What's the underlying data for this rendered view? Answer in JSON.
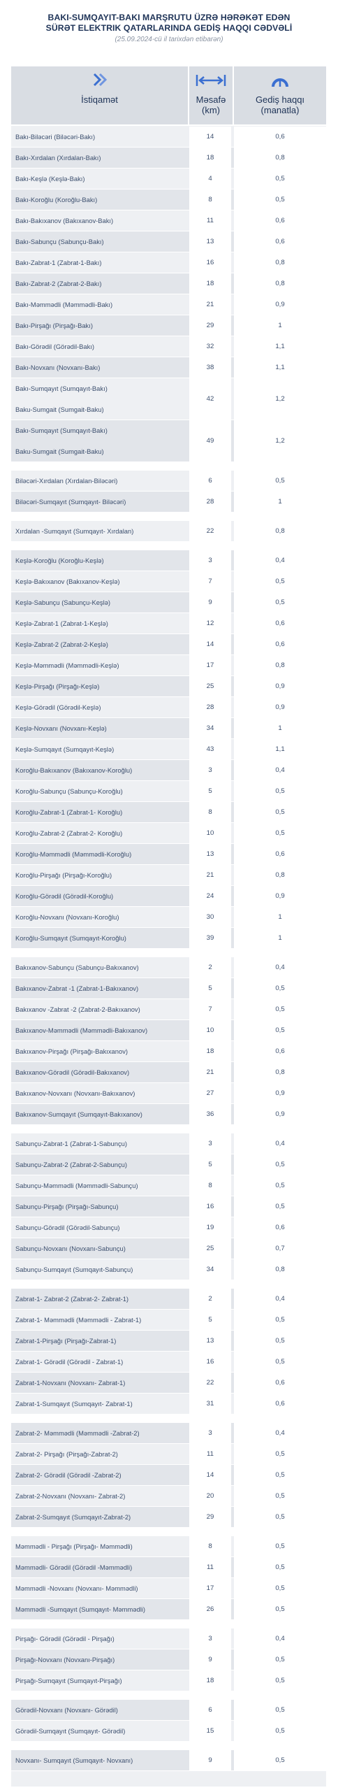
{
  "header": {
    "title_line1": "BAKI-SUMQAYIT-BAKI MARŞRUTU ÜZRƏ HƏRƏKƏT EDƏN",
    "title_line2": "SÜRƏT ELEKTRIK QATARLARINDA GEDİŞ HAQQI CƏDVƏLİ",
    "subtitle": "(25.09.2024-cü il tarixdən etibarən)"
  },
  "columns": {
    "direction": "İstiqamət",
    "distance_l1": "Məsafə",
    "distance_l2": "(km)",
    "fare_l1": "Gediş haqqı",
    "fare_l2": "(manatla)"
  },
  "rows": [
    {
      "d": [
        "Bakı-Biləcəri (Biləcəri-Bakı)"
      ],
      "km": "14",
      "fare": "0,6"
    },
    {
      "d": [
        "Bakı-Xırdalan (Xırdalan-Bakı)"
      ],
      "km": "18",
      "fare": "0,8"
    },
    {
      "d": [
        "Bakı-Keşlə (Keşlə-Bakı)"
      ],
      "km": "4",
      "fare": "0,5"
    },
    {
      "d": [
        "Bakı-Koroğlu (Koroğlu-Bakı)"
      ],
      "km": "8",
      "fare": "0,5"
    },
    {
      "d": [
        "Bakı-Bakıxanov (Bakıxanov-Bakı)"
      ],
      "km": "11",
      "fare": "0,6"
    },
    {
      "d": [
        "Bakı-Sabunçu (Sabunçu-Bakı)"
      ],
      "km": "13",
      "fare": "0,6"
    },
    {
      "d": [
        "Bakı-Zabrat-1 (Zabrat-1-Bakı)"
      ],
      "km": "16",
      "fare": "0,8"
    },
    {
      "d": [
        "Bakı-Zabrat-2 (Zabrat-2-Bakı)"
      ],
      "km": "18",
      "fare": "0,8"
    },
    {
      "d": [
        "Bakı-Məmmədli (Məmmədli-Bakı)"
      ],
      "km": "21",
      "fare": "0,9"
    },
    {
      "d": [
        "Bakı-Pirşağı (Pirşağı-Bakı)"
      ],
      "km": "29",
      "fare": "1"
    },
    {
      "d": [
        "Bakı-Görədil (Görədil-Bakı)"
      ],
      "km": "32",
      "fare": "1,1"
    },
    {
      "d": [
        "Bakı-Novxanı (Novxanı-Bakı)"
      ],
      "km": "38",
      "fare": "1,1"
    },
    {
      "d": [
        "Bakı-Sumqayıt (Sumqayıt-Bakı)",
        "Baku-Sumgait (Sumgait-Baku)"
      ],
      "km": "42",
      "fare": "1,2"
    },
    {
      "d": [
        "Bakı-Sumqayıt (Sumqayıt-Bakı)",
        "Baku-Sumgait (Sumgait-Baku)"
      ],
      "km": "49",
      "fare": "1,2"
    },
    {
      "blank": true
    },
    {
      "d": [
        "Biləcəri-Xırdalan (Xırdalan-Biləcəri)"
      ],
      "km": "6",
      "fare": "0,5"
    },
    {
      "d": [
        "Biləcəri-Sumqayıt (Sumqayıt- Biləcəri)"
      ],
      "km": "28",
      "fare": "1"
    },
    {
      "blank": true
    },
    {
      "d": [
        "Xırdalan -Sumqayıt (Sumqayıt- Xırdalan)"
      ],
      "km": "22",
      "fare": "0,8"
    },
    {
      "blank": true
    },
    {
      "d": [
        "Keşlə-Koroğlu (Koroğlu-Keşlə)"
      ],
      "km": "3",
      "fare": "0,4"
    },
    {
      "d": [
        "Keşlə-Bakıxanov (Bakıxanov-Keşlə)"
      ],
      "km": "7",
      "fare": "0,5"
    },
    {
      "d": [
        "Keşlə-Sabunçu (Sabunçu-Keşlə)"
      ],
      "km": "9",
      "fare": "0,5"
    },
    {
      "d": [
        "Keşlə-Zabrat-1 (Zabrat-1-Keşlə)"
      ],
      "km": "12",
      "fare": "0,6"
    },
    {
      "d": [
        "Keşlə-Zabrat-2 (Zabrat-2-Keşlə)"
      ],
      "km": "14",
      "fare": "0,6"
    },
    {
      "d": [
        "Keşlə-Məmmədli (Məmmədli-Keşlə)"
      ],
      "km": "17",
      "fare": "0,8"
    },
    {
      "d": [
        "Keşlə-Pirşağı (Pirşağı-Keşlə)"
      ],
      "km": "25",
      "fare": "0,9"
    },
    {
      "d": [
        "Keşlə-Görədil (Görədil-Keşlə)"
      ],
      "km": "28",
      "fare": "0,9"
    },
    {
      "d": [
        "Keşlə-Novxanı (Novxanı-Keşlə)"
      ],
      "km": "34",
      "fare": "1"
    },
    {
      "d": [
        "Keşlə-Sumqayıt (Sumqayıt-Keşlə)"
      ],
      "km": "43",
      "fare": "1,1"
    },
    {
      "d": [
        "Koroğlu-Bakıxanov (Bakıxanov-Koroğlu)"
      ],
      "km": "3",
      "fare": "0,4"
    },
    {
      "d": [
        "Koroğlu-Sabunçu (Sabunçu-Koroğlu)"
      ],
      "km": "5",
      "fare": "0,5"
    },
    {
      "d": [
        "Koroğlu-Zabrat-1 (Zabrat-1- Koroğlu)"
      ],
      "km": "8",
      "fare": "0,5"
    },
    {
      "d": [
        "Koroğlu-Zabrat-2 (Zabrat-2- Koroğlu)"
      ],
      "km": "10",
      "fare": "0,5"
    },
    {
      "d": [
        "Koroğlu-Məmmədli (Məmmədli-Koroğlu)"
      ],
      "km": "13",
      "fare": "0,6"
    },
    {
      "d": [
        "Koroğlu-Pirşağı (Pirşağı-Koroğlu)"
      ],
      "km": "21",
      "fare": "0,8"
    },
    {
      "d": [
        "Koroğlu-Görədil (Görədil-Koroğlu)"
      ],
      "km": "24",
      "fare": "0,9"
    },
    {
      "d": [
        "Koroğlu-Novxanı (Novxanı-Koroğlu)"
      ],
      "km": "30",
      "fare": "1"
    },
    {
      "d": [
        "Koroğlu-Sumqayıt (Sumqayıt-Koroğlu)"
      ],
      "km": "39",
      "fare": "1"
    },
    {
      "blank": true
    },
    {
      "d": [
        "Bakıxanov-Sabunçu (Sabunçu-Bakıxanov)"
      ],
      "km": "2",
      "fare": "0,4"
    },
    {
      "d": [
        "Bakıxanov-Zabrat -1 (Zabrat-1-Bakıxanov)"
      ],
      "km": "5",
      "fare": "0,5"
    },
    {
      "d": [
        "Bakıxanov -Zabrat -2 (Zabrat-2-Bakıxanov)"
      ],
      "km": "7",
      "fare": "0,5"
    },
    {
      "d": [
        "Bakıxanov-Məmmədli (Məmmədli-Bakıxanov)"
      ],
      "km": "10",
      "fare": "0,5"
    },
    {
      "d": [
        "Bakıxanov-Pirşağı (Pirşağı-Bakıxanov)"
      ],
      "km": "18",
      "fare": "0,6"
    },
    {
      "d": [
        "Bakıxanov-Görədil (Görədil-Bakıxanov)"
      ],
      "km": "21",
      "fare": "0,8"
    },
    {
      "d": [
        "Bakıxanov-Novxanı (Novxanı-Bakıxanov)"
      ],
      "km": "27",
      "fare": "0,9"
    },
    {
      "d": [
        "Bakıxanov-Sumqayıt (Sumqayıt-Bakıxanov)"
      ],
      "km": "36",
      "fare": "0,9"
    },
    {
      "blank": true
    },
    {
      "d": [
        "Sabunçu-Zabrat-1 (Zabrat-1-Sabunçu)"
      ],
      "km": "3",
      "fare": "0,4"
    },
    {
      "d": [
        "Sabunçu-Zabrat-2 (Zabrat-2-Sabunçu)"
      ],
      "km": "5",
      "fare": "0,5"
    },
    {
      "d": [
        "Sabunçu-Məmmədli (Məmmədli-Sabunçu)"
      ],
      "km": "8",
      "fare": "0,5"
    },
    {
      "d": [
        "Sabunçu-Pirşağı (Pirşağı-Sabunçu)"
      ],
      "km": "16",
      "fare": "0,5"
    },
    {
      "d": [
        "Sabunçu-Görədil (Görədil-Sabunçu)"
      ],
      "km": "19",
      "fare": "0,6"
    },
    {
      "d": [
        "Sabunçu-Novxanı (Novxanı-Sabunçu)"
      ],
      "km": "25",
      "fare": "0,7"
    },
    {
      "d": [
        "Sabunçu-Sumqayıt (Sumqayıt-Sabunçu)"
      ],
      "km": "34",
      "fare": "0,8"
    },
    {
      "blank": true
    },
    {
      "d": [
        "Zabrat-1- Zabrat-2 (Zabrat-2- Zabrat-1)"
      ],
      "km": "2",
      "fare": "0,4"
    },
    {
      "d": [
        "Zabrat-1- Məmmədli (Məmmədli - Zabrat-1)"
      ],
      "km": "5",
      "fare": "0,5"
    },
    {
      "d": [
        "Zabrat-1-Pirşağı (Pirşağı-Zabrat-1)"
      ],
      "km": "13",
      "fare": "0,5"
    },
    {
      "d": [
        "Zabrat-1- Görədil (Görədil - Zabrat-1)"
      ],
      "km": "16",
      "fare": "0,5"
    },
    {
      "d": [
        "Zabrat-1-Novxanı (Novxanı- Zabrat-1)"
      ],
      "km": "22",
      "fare": "0,6"
    },
    {
      "d": [
        "Zabrat-1-Sumqayıt (Sumqayıt- Zabrat-1)"
      ],
      "km": "31",
      "fare": "0,6"
    },
    {
      "blank": true
    },
    {
      "d": [
        "Zabrat-2- Məmmədli (Məmmədli -Zabrat-2)"
      ],
      "km": "3",
      "fare": "0,4"
    },
    {
      "d": [
        "Zabrat-2- Pirşağı (Pirşağı-Zabrat-2)"
      ],
      "km": "11",
      "fare": "0,5"
    },
    {
      "d": [
        "Zabrat-2- Görədil (Görədil -Zabrat-2)"
      ],
      "km": "14",
      "fare": "0,5"
    },
    {
      "d": [
        "Zabrat-2-Novxanı (Novxanı- Zabrat-2)"
      ],
      "km": "20",
      "fare": "0,5"
    },
    {
      "d": [
        "Zabrat-2-Sumqayıt (Sumqayıt-Zabrat-2)"
      ],
      "km": "29",
      "fare": "0,5"
    },
    {
      "blank": true
    },
    {
      "d": [
        "Məmmədli - Pirşağı (Pirşağı- Məmmədli)"
      ],
      "km": "8",
      "fare": "0,5"
    },
    {
      "d": [
        "Məmmədli- Görədil (Görədil -Məmmədli)"
      ],
      "km": "11",
      "fare": "0,5"
    },
    {
      "d": [
        "Məmmədli -Novxanı (Novxanı- Məmmədli)"
      ],
      "km": "17",
      "fare": "0,5"
    },
    {
      "d": [
        "Məmmədli -Sumqayıt (Sumqayıt- Məmmədli)"
      ],
      "km": "26",
      "fare": "0,5"
    },
    {
      "blank": true
    },
    {
      "d": [
        "Pirşağı- Görədil (Görədil - Pirşağı)"
      ],
      "km": "3",
      "fare": "0,4"
    },
    {
      "d": [
        "Pirşağı-Novxanı (Novxanı-Pirşağı)"
      ],
      "km": "9",
      "fare": "0,5"
    },
    {
      "d": [
        "Pirşağı-Sumqayıt (Sumqayıt-Pirşağı)"
      ],
      "km": "18",
      "fare": "0,5"
    },
    {
      "blank": true
    },
    {
      "d": [
        "Görədil-Novxanı (Novxanı- Görədil)"
      ],
      "km": "6",
      "fare": "0,5"
    },
    {
      "d": [
        "Görədil-Sumqayıt (Sumqayıt- Görədil)"
      ],
      "km": "15",
      "fare": "0,5"
    },
    {
      "blank": true
    },
    {
      "d": [
        "Novxanı- Sumqayıt (Sumqayıt- Novxanı)"
      ],
      "km": "9",
      "fare": "0,5"
    }
  ]
}
